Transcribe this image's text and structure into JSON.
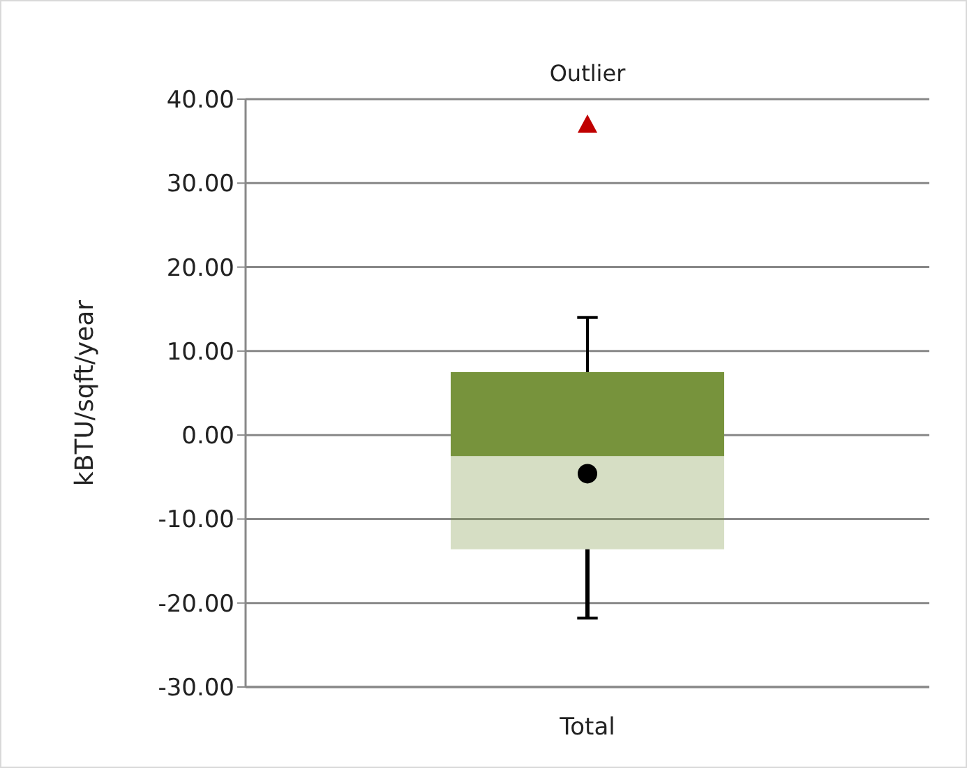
{
  "chart_data": {
    "type": "box",
    "ylabel": "kBTU/sqft/year",
    "categories": [
      "Total"
    ],
    "annotations": [
      "Outlier"
    ],
    "ylim": [
      -30,
      40
    ],
    "yticks": [
      {
        "value": -30,
        "label": "-30.00"
      },
      {
        "value": -20,
        "label": "-20.00"
      },
      {
        "value": -10,
        "label": "-10.00"
      },
      {
        "value": 0,
        "label": "0.00"
      },
      {
        "value": 10,
        "label": "10.00"
      },
      {
        "value": 20,
        "label": "20.00"
      },
      {
        "value": 30,
        "label": "30.00"
      },
      {
        "value": 40,
        "label": "40.00"
      }
    ],
    "grid": "y",
    "series": [
      {
        "color": "#77933c",
        "boxes": [
          {
            "low": -21.8,
            "q1": -13.6,
            "median": -2.5,
            "q3": 7.5,
            "high": 14.0,
            "mean": -4.6,
            "outliers": [
              37.0
            ]
          }
        ]
      }
    ]
  }
}
